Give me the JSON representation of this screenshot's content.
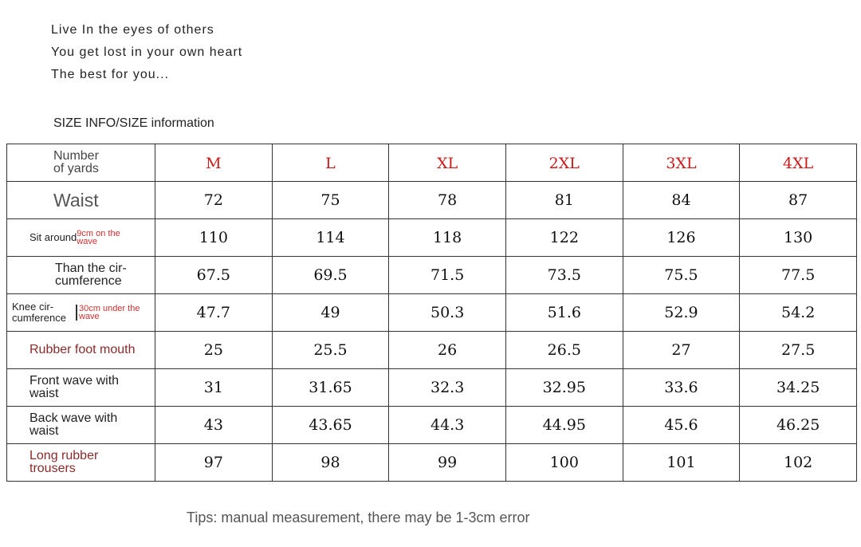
{
  "intro": [
    "Live In the eyes of others",
    "You get lost in your own heart",
    "The best for you..."
  ],
  "table_title": "SIZE INFO/SIZE information",
  "table": {
    "header": [
      "Number of yards",
      "M",
      "L",
      "XL",
      "2XL",
      "3XL",
      "4XL"
    ],
    "rows": [
      {
        "label": "Waist",
        "cells": [
          "72",
          "75",
          "78",
          "81",
          "84",
          "87"
        ]
      },
      {
        "label": "Sit around",
        "note": "9cm on the wave",
        "cells": [
          "110",
          "114",
          "118",
          "122",
          "126",
          "130"
        ]
      },
      {
        "label": "Than the cir-cumference",
        "cells": [
          "67.5",
          "69.5",
          "71.5",
          "73.5",
          "75.5",
          "77.5"
        ]
      },
      {
        "label": "Knee cir-cumference",
        "note": "30cm under the wave",
        "cells": [
          "47.7",
          "49",
          "50.3",
          "51.6",
          "52.9",
          "54.2"
        ]
      },
      {
        "label": "Rubber foot mouth",
        "cells": [
          "25",
          "25.5",
          "26",
          "26.5",
          "27",
          "27.5"
        ]
      },
      {
        "label": "Front wave with waist",
        "cells": [
          "31",
          "31.65",
          "32.3",
          "32.95",
          "33.6",
          "34.25"
        ]
      },
      {
        "label": "Back wave with waist",
        "cells": [
          "43",
          "43.65",
          "44.3",
          "44.95",
          "45.6",
          "46.25"
        ]
      },
      {
        "label": "Long rubber trousers",
        "cells": [
          "97",
          "98",
          "99",
          "100",
          "101",
          "102"
        ]
      }
    ]
  },
  "tip": "Tips: manual measurement, there may be 1-3cm error"
}
